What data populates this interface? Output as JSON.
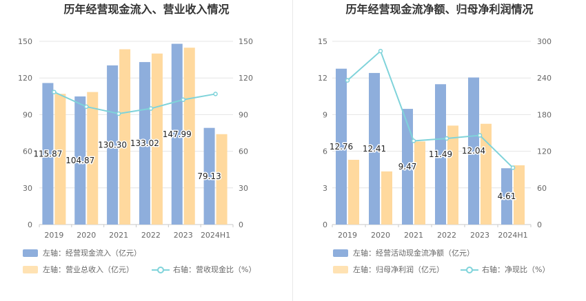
{
  "colors": {
    "bar1": "#8eaedc",
    "bar2": "#ffd99e",
    "line": "#7fd3da",
    "grid": "#e4e4e4",
    "axis": "#c8c8c8"
  },
  "charts": [
    {
      "title": "历年经营现金流入、营业收入情况",
      "legend": {
        "bar1": "左轴：经营现金流入（亿元）",
        "bar2": "左轴：营业总收入（亿元）",
        "line": "右轴：营收现金比（%）"
      },
      "chart_data": {
        "type": "bar",
        "categories": [
          "2019",
          "2020",
          "2021",
          "2022",
          "2023",
          "2024H1"
        ],
        "series": [
          {
            "name": "左轴：经营现金流入（亿元）",
            "axis": "left",
            "values": [
              115.87,
              104.87,
              130.3,
              133.02,
              147.99,
              79.13
            ]
          },
          {
            "name": "左轴：营业总收入（亿元）",
            "axis": "left",
            "values": [
              107,
              108.5,
              143.5,
              140,
              144.8,
              74
            ]
          },
          {
            "name": "右轴：营收现金比（%）",
            "axis": "right",
            "type": "line",
            "values": [
              108.5,
              96.5,
              90.8,
              95,
              102.2,
              106.9
            ]
          }
        ],
        "data_labels": [
          "115.87",
          "104.87",
          "130.30",
          "133.02",
          "147.99",
          "79.13"
        ],
        "left_axis": {
          "ylim": [
            0,
            150
          ],
          "ticks": [
            "0",
            "30",
            "60",
            "90",
            "120",
            "150"
          ]
        },
        "right_axis": {
          "ylim": [
            0,
            150
          ],
          "ticks": [
            "0",
            "30",
            "60",
            "90",
            "120",
            "150"
          ]
        },
        "grid": true
      }
    },
    {
      "title": "历年经营现金流净额、归母净利润情况",
      "legend": {
        "bar1": "左轴：经营活动现金流净额（亿元）",
        "bar2": "左轴：归母净利润（亿元）",
        "line": "右轴：净现比（%）"
      },
      "chart_data": {
        "type": "bar",
        "categories": [
          "2019",
          "2020",
          "2021",
          "2022",
          "2023",
          "2024H1"
        ],
        "series": [
          {
            "name": "左轴：经营活动现金流净额（亿元）",
            "axis": "left",
            "values": [
              12.76,
              12.41,
              9.47,
              11.49,
              12.04,
              4.61
            ]
          },
          {
            "name": "左轴：归母净利润（亿元）",
            "axis": "left",
            "values": [
              5.3,
              4.35,
              6.8,
              8.1,
              8.25,
              4.85
            ]
          },
          {
            "name": "右轴：净现比（%）",
            "axis": "right",
            "type": "line",
            "values": [
              236,
              284,
              137,
              141,
              146,
              93
            ]
          }
        ],
        "data_labels": [
          "12.76",
          "12.41",
          "9.47",
          "11.49",
          "12.04",
          "4.61"
        ],
        "left_axis": {
          "ylim": [
            0,
            15
          ],
          "ticks": [
            "0",
            "3",
            "6",
            "9",
            "12",
            "15"
          ]
        },
        "right_axis": {
          "ylim": [
            0,
            300
          ],
          "ticks": [
            "0",
            "60",
            "120",
            "180",
            "240",
            "300"
          ]
        },
        "grid": true
      }
    }
  ]
}
